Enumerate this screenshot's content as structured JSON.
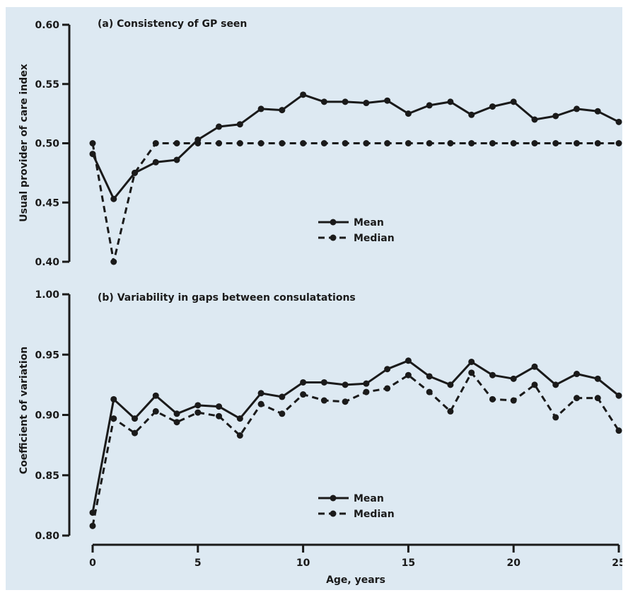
{
  "colors": {
    "background": "#dde9f2",
    "ink": "#1a1a1a"
  },
  "chart_data": [
    {
      "type": "line",
      "title": "(a) Consistency of GP seen",
      "xlabel": "",
      "ylabel": "Usual provider of care index",
      "xlim": [
        0,
        25
      ],
      "ylim": [
        0.4,
        0.6
      ],
      "yticks": [
        "0.40",
        "0.45",
        "0.50",
        "0.55",
        "0.60"
      ],
      "legend": "center",
      "grid": false,
      "x": [
        0,
        1,
        2,
        3,
        4,
        5,
        6,
        7,
        8,
        9,
        10,
        11,
        12,
        13,
        14,
        15,
        16,
        17,
        18,
        19,
        20,
        21,
        22,
        23,
        24,
        25
      ],
      "series": [
        {
          "name": "Mean",
          "style": "solid",
          "values": [
            0.491,
            0.453,
            0.475,
            0.484,
            0.486,
            0.503,
            0.514,
            0.516,
            0.529,
            0.528,
            0.541,
            0.535,
            0.535,
            0.534,
            0.536,
            0.525,
            0.532,
            0.535,
            0.524,
            0.531,
            0.535,
            0.52,
            0.523,
            0.529,
            0.527,
            0.518
          ]
        },
        {
          "name": "Median",
          "style": "dashed",
          "values": [
            0.5,
            0.4,
            0.475,
            0.5,
            0.5,
            0.5,
            0.5,
            0.5,
            0.5,
            0.5,
            0.5,
            0.5,
            0.5,
            0.5,
            0.5,
            0.5,
            0.5,
            0.5,
            0.5,
            0.5,
            0.5,
            0.5,
            0.5,
            0.5,
            0.5,
            0.5
          ]
        }
      ]
    },
    {
      "type": "line",
      "title": "(b) Variability in gaps between consulatations",
      "xlabel": "Age, years",
      "ylabel": "Coefficient of variation",
      "xlim": [
        0,
        25
      ],
      "ylim": [
        0.8,
        1.0
      ],
      "xticks": [
        "0",
        "5",
        "10",
        "15",
        "20",
        "25"
      ],
      "yticks": [
        "0.80",
        "0.85",
        "0.90",
        "0.95",
        "1.00"
      ],
      "legend": "bottom-center",
      "grid": false,
      "x": [
        0,
        1,
        2,
        3,
        4,
        5,
        6,
        7,
        8,
        9,
        10,
        11,
        12,
        13,
        14,
        15,
        16,
        17,
        18,
        19,
        20,
        21,
        22,
        23,
        24,
        25
      ],
      "series": [
        {
          "name": "Mean",
          "style": "solid",
          "values": [
            0.819,
            0.913,
            0.897,
            0.916,
            0.901,
            0.908,
            0.907,
            0.897,
            0.918,
            0.915,
            0.927,
            0.927,
            0.925,
            0.926,
            0.938,
            0.945,
            0.932,
            0.925,
            0.944,
            0.933,
            0.93,
            0.94,
            0.925,
            0.934,
            0.93,
            0.916
          ]
        },
        {
          "name": "Median",
          "style": "dashed",
          "values": [
            0.808,
            0.897,
            0.885,
            0.903,
            0.894,
            0.902,
            0.899,
            0.883,
            0.909,
            0.901,
            0.917,
            0.912,
            0.911,
            0.919,
            0.922,
            0.933,
            0.919,
            0.903,
            0.935,
            0.913,
            0.912,
            0.925,
            0.898,
            0.914,
            0.914,
            0.887
          ]
        }
      ]
    }
  ]
}
